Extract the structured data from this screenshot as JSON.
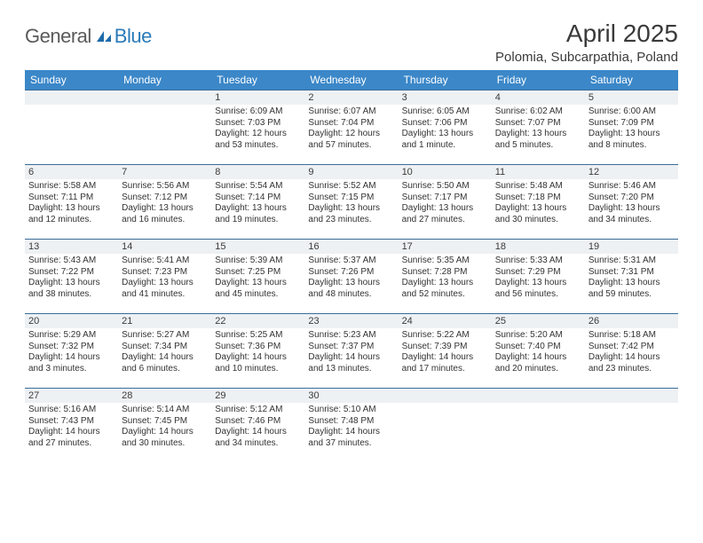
{
  "logo": {
    "text1": "General",
    "text2": "Blue"
  },
  "title": "April 2025",
  "location": "Polomia, Subcarpathia, Poland",
  "colors": {
    "header_bg": "#3b87c8",
    "header_text": "#ffffff",
    "daynum_bg": "#eef1f4",
    "cell_border_top": "#3b6d99",
    "body_text": "#333333",
    "logo_gray": "#5a5a5a",
    "logo_blue": "#2a7ab8"
  },
  "weekdays": [
    "Sunday",
    "Monday",
    "Tuesday",
    "Wednesday",
    "Thursday",
    "Friday",
    "Saturday"
  ],
  "weeks": [
    [
      {
        "blank": true
      },
      {
        "blank": true
      },
      {
        "day": "1",
        "sunrise": "6:09 AM",
        "sunset": "7:03 PM",
        "daylight": "12 hours and 53 minutes."
      },
      {
        "day": "2",
        "sunrise": "6:07 AM",
        "sunset": "7:04 PM",
        "daylight": "12 hours and 57 minutes."
      },
      {
        "day": "3",
        "sunrise": "6:05 AM",
        "sunset": "7:06 PM",
        "daylight": "13 hours and 1 minute."
      },
      {
        "day": "4",
        "sunrise": "6:02 AM",
        "sunset": "7:07 PM",
        "daylight": "13 hours and 5 minutes."
      },
      {
        "day": "5",
        "sunrise": "6:00 AM",
        "sunset": "7:09 PM",
        "daylight": "13 hours and 8 minutes."
      }
    ],
    [
      {
        "day": "6",
        "sunrise": "5:58 AM",
        "sunset": "7:11 PM",
        "daylight": "13 hours and 12 minutes."
      },
      {
        "day": "7",
        "sunrise": "5:56 AM",
        "sunset": "7:12 PM",
        "daylight": "13 hours and 16 minutes."
      },
      {
        "day": "8",
        "sunrise": "5:54 AM",
        "sunset": "7:14 PM",
        "daylight": "13 hours and 19 minutes."
      },
      {
        "day": "9",
        "sunrise": "5:52 AM",
        "sunset": "7:15 PM",
        "daylight": "13 hours and 23 minutes."
      },
      {
        "day": "10",
        "sunrise": "5:50 AM",
        "sunset": "7:17 PM",
        "daylight": "13 hours and 27 minutes."
      },
      {
        "day": "11",
        "sunrise": "5:48 AM",
        "sunset": "7:18 PM",
        "daylight": "13 hours and 30 minutes."
      },
      {
        "day": "12",
        "sunrise": "5:46 AM",
        "sunset": "7:20 PM",
        "daylight": "13 hours and 34 minutes."
      }
    ],
    [
      {
        "day": "13",
        "sunrise": "5:43 AM",
        "sunset": "7:22 PM",
        "daylight": "13 hours and 38 minutes."
      },
      {
        "day": "14",
        "sunrise": "5:41 AM",
        "sunset": "7:23 PM",
        "daylight": "13 hours and 41 minutes."
      },
      {
        "day": "15",
        "sunrise": "5:39 AM",
        "sunset": "7:25 PM",
        "daylight": "13 hours and 45 minutes."
      },
      {
        "day": "16",
        "sunrise": "5:37 AM",
        "sunset": "7:26 PM",
        "daylight": "13 hours and 48 minutes."
      },
      {
        "day": "17",
        "sunrise": "5:35 AM",
        "sunset": "7:28 PM",
        "daylight": "13 hours and 52 minutes."
      },
      {
        "day": "18",
        "sunrise": "5:33 AM",
        "sunset": "7:29 PM",
        "daylight": "13 hours and 56 minutes."
      },
      {
        "day": "19",
        "sunrise": "5:31 AM",
        "sunset": "7:31 PM",
        "daylight": "13 hours and 59 minutes."
      }
    ],
    [
      {
        "day": "20",
        "sunrise": "5:29 AM",
        "sunset": "7:32 PM",
        "daylight": "14 hours and 3 minutes."
      },
      {
        "day": "21",
        "sunrise": "5:27 AM",
        "sunset": "7:34 PM",
        "daylight": "14 hours and 6 minutes."
      },
      {
        "day": "22",
        "sunrise": "5:25 AM",
        "sunset": "7:36 PM",
        "daylight": "14 hours and 10 minutes."
      },
      {
        "day": "23",
        "sunrise": "5:23 AM",
        "sunset": "7:37 PM",
        "daylight": "14 hours and 13 minutes."
      },
      {
        "day": "24",
        "sunrise": "5:22 AM",
        "sunset": "7:39 PM",
        "daylight": "14 hours and 17 minutes."
      },
      {
        "day": "25",
        "sunrise": "5:20 AM",
        "sunset": "7:40 PM",
        "daylight": "14 hours and 20 minutes."
      },
      {
        "day": "26",
        "sunrise": "5:18 AM",
        "sunset": "7:42 PM",
        "daylight": "14 hours and 23 minutes."
      }
    ],
    [
      {
        "day": "27",
        "sunrise": "5:16 AM",
        "sunset": "7:43 PM",
        "daylight": "14 hours and 27 minutes."
      },
      {
        "day": "28",
        "sunrise": "5:14 AM",
        "sunset": "7:45 PM",
        "daylight": "14 hours and 30 minutes."
      },
      {
        "day": "29",
        "sunrise": "5:12 AM",
        "sunset": "7:46 PM",
        "daylight": "14 hours and 34 minutes."
      },
      {
        "day": "30",
        "sunrise": "5:10 AM",
        "sunset": "7:48 PM",
        "daylight": "14 hours and 37 minutes."
      },
      {
        "blank": true
      },
      {
        "blank": true
      },
      {
        "blank": true
      }
    ]
  ],
  "labels": {
    "sunrise_prefix": "Sunrise: ",
    "sunset_prefix": "Sunset: ",
    "daylight_prefix": "Daylight: "
  }
}
